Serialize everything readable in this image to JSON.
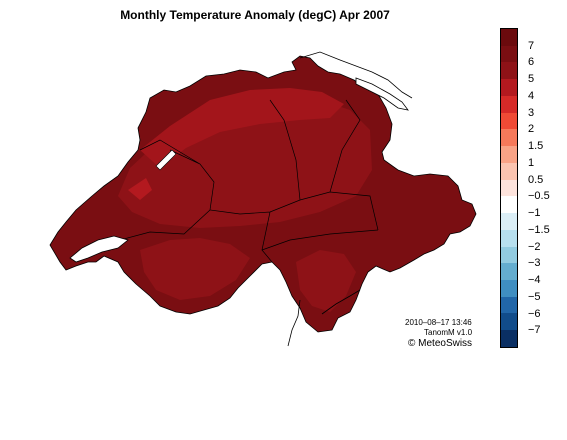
{
  "title": "Monthly Temperature Anomaly (degC) Apr 2007",
  "legend": {
    "labels": [
      "7",
      "6",
      "5",
      "4",
      "3",
      "2",
      "1.5",
      "1",
      "0.5",
      "−0.5",
      "−1",
      "−1.5",
      "−2",
      "−3",
      "−4",
      "−5",
      "−6",
      "−7"
    ],
    "colors": [
      "#6b0a0d",
      "#7a0e12",
      "#8e1217",
      "#b3191f",
      "#d62a28",
      "#ef4a35",
      "#f6795a",
      "#f9a386",
      "#fbc4b0",
      "#fde3dc",
      "#ffffff",
      "#dbeef6",
      "#b7dfee",
      "#92cbe0",
      "#64adcf",
      "#3f8ec1",
      "#2166a8",
      "#114c8a",
      "#0a2f63"
    ]
  },
  "credits": {
    "timestamp": "2010–08–17 13:46",
    "version": "TanomM v1.0",
    "copyright": "© MeteoSwiss"
  },
  "map_colors": {
    "dark_red": "#7a0e12",
    "mid_red": "#8e1217",
    "bright_red": "#b3191f",
    "lake": "#ffffff"
  }
}
